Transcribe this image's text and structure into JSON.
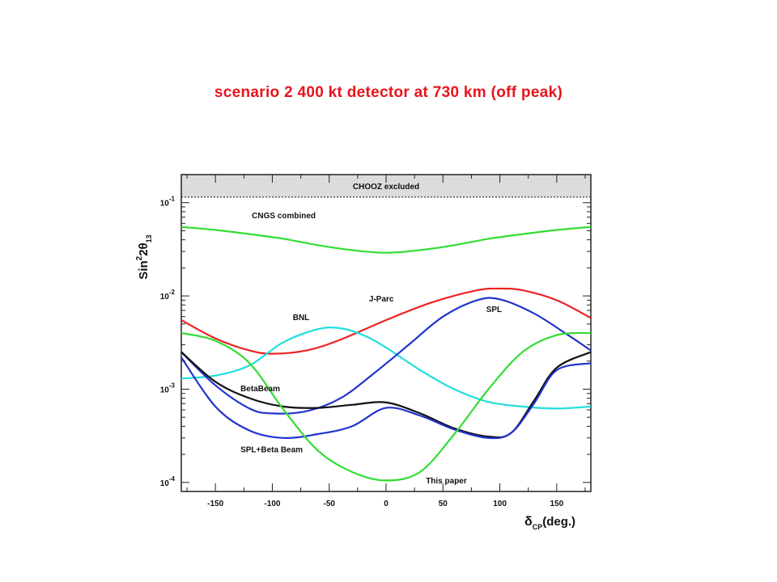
{
  "slide_title": "scenario 2 400 kt detector at 730 km (off peak)",
  "chart_data": {
    "type": "line",
    "y_scale": "log",
    "xlim": [
      -180,
      180
    ],
    "ylim": [
      8e-05,
      0.2
    ],
    "x_ticks": [
      -150,
      -100,
      -50,
      0,
      50,
      100,
      150
    ],
    "x_tick_labels": [
      "-150",
      "-100",
      "-50",
      "0",
      "50",
      "100",
      "150"
    ],
    "y_ticks": [
      {
        "base": "10",
        "exp": "-1",
        "value": 0.1
      },
      {
        "base": "10",
        "exp": "-2",
        "value": 0.01
      },
      {
        "base": "10",
        "exp": "-3",
        "value": 0.001
      },
      {
        "base": "10",
        "exp": "-4",
        "value": 0.0001
      }
    ],
    "ylabel": {
      "pre": "Sin",
      "sup": "2",
      "mid": "2θ",
      "sub": "13"
    },
    "xlabel": {
      "pre": "δ",
      "sub": "CP",
      "post": "(deg.)"
    },
    "band": {
      "label": "CHOOZ excluded",
      "from": 0.115,
      "to": 0.2,
      "color": "#dcdcdc"
    },
    "series": [
      {
        "name": "CNGS combined",
        "color": "#33dd33",
        "x": [
          -180,
          -150,
          -120,
          -90,
          -60,
          -30,
          0,
          30,
          60,
          90,
          120,
          150,
          180
        ],
        "y": [
          0.055,
          0.051,
          0.046,
          0.041,
          0.035,
          0.031,
          0.029,
          0.031,
          0.035,
          0.041,
          0.046,
          0.051,
          0.055
        ]
      },
      {
        "name": "J-Parc",
        "color": "#ee2222",
        "x": [
          -180,
          -150,
          -120,
          -100,
          -70,
          -40,
          0,
          40,
          80,
          100,
          120,
          150,
          180
        ],
        "y": [
          0.0055,
          0.0035,
          0.0026,
          0.0024,
          0.0026,
          0.0034,
          0.0055,
          0.0085,
          0.0115,
          0.012,
          0.0115,
          0.009,
          0.0058
        ]
      },
      {
        "name": "BNL",
        "color": "#22dddd",
        "x": [
          -180,
          -150,
          -120,
          -90,
          -60,
          -40,
          -20,
          0,
          30,
          60,
          90,
          120,
          150,
          180
        ],
        "y": [
          0.0013,
          0.0014,
          0.0018,
          0.0032,
          0.0044,
          0.0045,
          0.0038,
          0.0028,
          0.0016,
          0.001,
          0.00073,
          0.00065,
          0.00062,
          0.00065
        ]
      },
      {
        "name": "SPL",
        "color": "#2233cc",
        "x": [
          -180,
          -150,
          -120,
          -100,
          -70,
          -40,
          -10,
          20,
          50,
          80,
          100,
          130,
          160,
          180
        ],
        "y": [
          0.0025,
          0.0011,
          0.00062,
          0.00055,
          0.00058,
          0.0008,
          0.0015,
          0.003,
          0.006,
          0.009,
          0.0092,
          0.0065,
          0.0038,
          0.0026
        ]
      },
      {
        "name": "BetaBeam",
        "color": "#111111",
        "x": [
          -180,
          -150,
          -120,
          -90,
          -60,
          -30,
          0,
          30,
          60,
          90,
          110,
          130,
          150,
          180
        ],
        "y": [
          0.0025,
          0.0012,
          0.0008,
          0.00065,
          0.00063,
          0.00068,
          0.00072,
          0.00055,
          0.00038,
          0.00031,
          0.00034,
          0.00075,
          0.0017,
          0.0025
        ]
      },
      {
        "name": "SPL+Beta Beam",
        "color": "#2233cc",
        "x": [
          -180,
          -150,
          -120,
          -90,
          -60,
          -30,
          0,
          30,
          60,
          90,
          110,
          130,
          150,
          180
        ],
        "y": [
          0.0022,
          0.00065,
          0.00036,
          0.0003,
          0.00033,
          0.0004,
          0.00063,
          0.00052,
          0.00037,
          0.0003,
          0.00034,
          0.0007,
          0.0016,
          0.0019
        ]
      },
      {
        "name": "This paper",
        "color": "#33dd33",
        "x": [
          -180,
          -150,
          -120,
          -90,
          -60,
          -30,
          0,
          30,
          60,
          90,
          120,
          150,
          180
        ],
        "y": [
          0.004,
          0.0033,
          0.0019,
          0.0006,
          0.00022,
          0.00013,
          0.000105,
          0.00013,
          0.00033,
          0.001,
          0.0025,
          0.0038,
          0.004
        ]
      }
    ],
    "curve_labels": [
      {
        "series": "CNGS combined",
        "text": "CNGS combined",
        "at_x": -118,
        "at_y": 0.068
      },
      {
        "series": "J-Parc",
        "text": "J-Parc",
        "at_x": -15,
        "at_y": 0.0087
      },
      {
        "series": "BNL",
        "text": "BNL",
        "at_x": -82,
        "at_y": 0.0055
      },
      {
        "series": "SPL",
        "text": "SPL",
        "at_x": 88,
        "at_y": 0.0067
      },
      {
        "series": "BetaBeam",
        "text": "BetaBeam",
        "at_x": -128,
        "at_y": 0.00095
      },
      {
        "series": "SPL+Beta Beam",
        "text": "SPL+Beta Beam",
        "at_x": -128,
        "at_y": 0.00021
      },
      {
        "series": "This paper",
        "text": "This paper",
        "at_x": 35,
        "at_y": 9.8e-05
      }
    ]
  }
}
